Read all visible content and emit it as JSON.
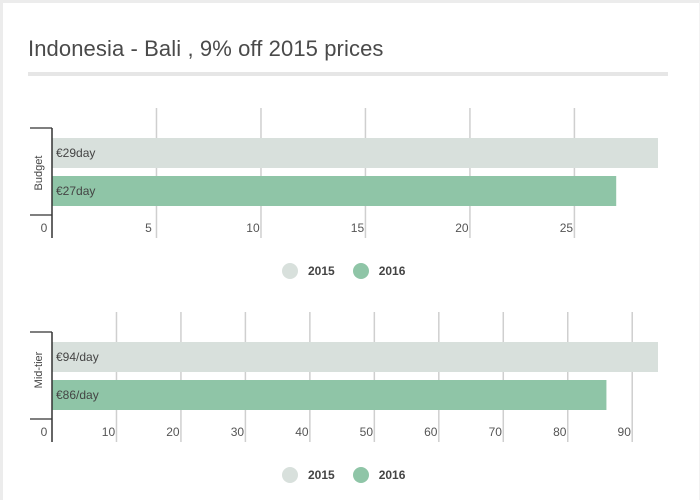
{
  "title": "Indonesia - Bali , 9% off 2015 prices",
  "colors": {
    "2015": "#d8e0dc",
    "2016": "#8fc5a7"
  },
  "chart_data": [
    {
      "type": "bar",
      "orientation": "horizontal",
      "category": "Budget",
      "series": [
        {
          "name": "2015",
          "value": 29,
          "label": "€29day"
        },
        {
          "name": "2016",
          "value": 27,
          "label": "€27day"
        }
      ],
      "xlim": [
        0,
        29
      ],
      "xticks": [
        0,
        5,
        10,
        15,
        20,
        25
      ],
      "grid": true,
      "legend": "bottom"
    },
    {
      "type": "bar",
      "orientation": "horizontal",
      "category": "Mid-tier",
      "series": [
        {
          "name": "2015",
          "value": 94,
          "label": "€94/day"
        },
        {
          "name": "2016",
          "value": 86,
          "label": "€86/day"
        }
      ],
      "xlim": [
        0,
        94
      ],
      "xticks": [
        0,
        10,
        20,
        30,
        40,
        50,
        60,
        70,
        80,
        90
      ],
      "grid": true,
      "legend": "bottom"
    }
  ],
  "legends": [
    [
      {
        "name": "2015"
      },
      {
        "name": "2016"
      }
    ],
    [
      {
        "name": "2015"
      },
      {
        "name": "2016"
      }
    ]
  ]
}
